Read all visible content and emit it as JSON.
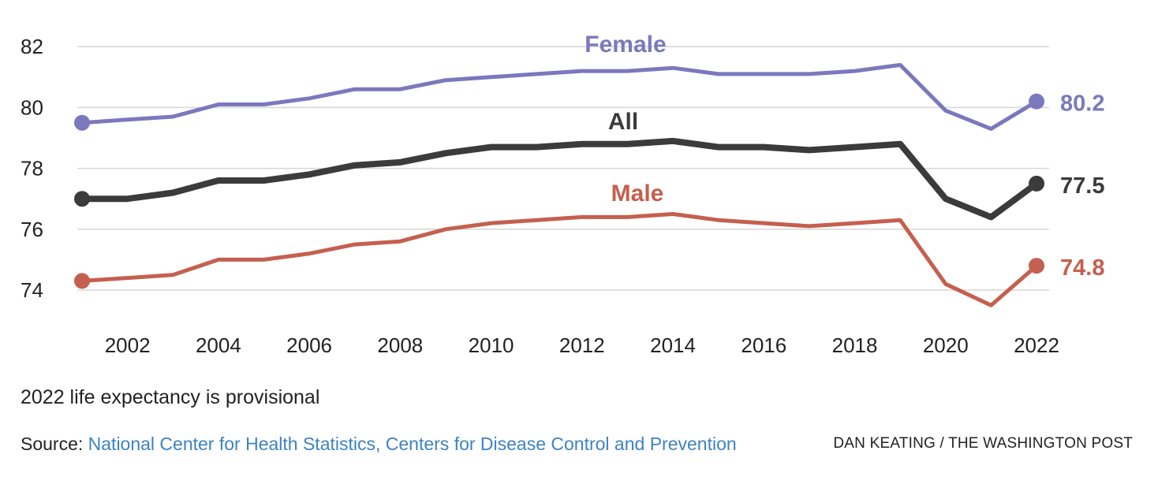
{
  "chart_data": {
    "type": "line",
    "x": [
      2001,
      2002,
      2003,
      2004,
      2005,
      2006,
      2007,
      2008,
      2009,
      2010,
      2011,
      2012,
      2013,
      2014,
      2015,
      2016,
      2017,
      2018,
      2019,
      2020,
      2021,
      2022
    ],
    "series": [
      {
        "name": "Female",
        "color": "#7b78bd",
        "end_label": "80.2",
        "values": [
          79.5,
          79.6,
          79.7,
          80.1,
          80.1,
          80.3,
          80.6,
          80.6,
          80.9,
          81.0,
          81.1,
          81.2,
          81.2,
          81.3,
          81.1,
          81.1,
          81.1,
          81.2,
          81.4,
          79.9,
          79.3,
          80.2
        ]
      },
      {
        "name": "All",
        "color": "#3b3b3b",
        "end_label": "77.5",
        "values": [
          77.0,
          77.0,
          77.2,
          77.6,
          77.6,
          77.8,
          78.1,
          78.2,
          78.5,
          78.7,
          78.7,
          78.8,
          78.8,
          78.9,
          78.7,
          78.7,
          78.6,
          78.7,
          78.8,
          77.0,
          76.4,
          77.5
        ]
      },
      {
        "name": "Male",
        "color": "#c4604f",
        "end_label": "74.8",
        "values": [
          74.3,
          74.4,
          74.5,
          75.0,
          75.0,
          75.2,
          75.5,
          75.6,
          76.0,
          76.2,
          76.3,
          76.4,
          76.4,
          76.5,
          76.3,
          76.2,
          76.1,
          76.2,
          76.3,
          74.2,
          73.5,
          74.8
        ]
      }
    ],
    "x_ticks": [
      "2002",
      "2004",
      "2006",
      "2008",
      "2010",
      "2012",
      "2014",
      "2016",
      "2018",
      "2020",
      "2022"
    ],
    "y_ticks": [
      "74",
      "76",
      "78",
      "80",
      "82"
    ],
    "ylim": [
      73.2,
      82.6
    ],
    "grid": true,
    "legend": "inline labels"
  },
  "footer": {
    "note": "2022 life expectancy is provisional",
    "source_prefix": "Source: ",
    "source_link": "National Center for Health Statistics, Centers for Disease Control and Prevention",
    "credit": "DAN KEATING / THE WASHINGTON POST"
  }
}
